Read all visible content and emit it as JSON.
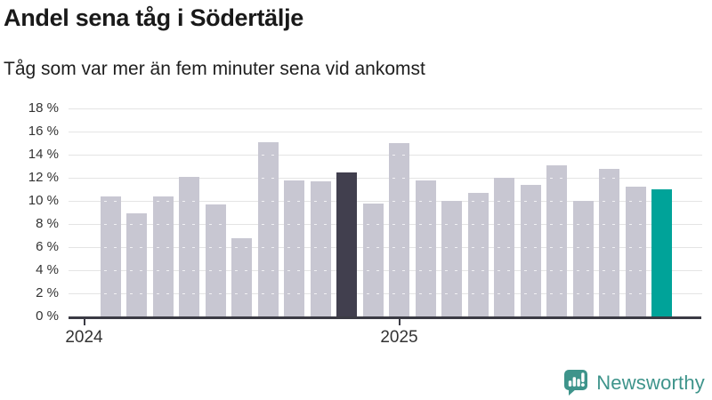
{
  "title": "Andel sena tåg i Södertälje",
  "subtitle": "Tåg som var mer än fem minuter sena vid ankomst",
  "brand": {
    "name": "Newsworthy"
  },
  "chart_data": {
    "type": "bar",
    "title": "Andel sena tåg i Södertälje",
    "subtitle": "Tåg som var mer än fem minuter sena vid ankomst",
    "unit": "%",
    "x": [
      "2024-02",
      "2024-03",
      "2024-04",
      "2024-05",
      "2024-06",
      "2024-07",
      "2024-08",
      "2024-09",
      "2024-10",
      "2024-11",
      "2024-12",
      "2025-01",
      "2025-02",
      "2025-03",
      "2025-04",
      "2025-05",
      "2025-06",
      "2025-07",
      "2025-08",
      "2025-09",
      "2025-10",
      "2025-11"
    ],
    "values": [
      10.4,
      8.9,
      10.4,
      12.1,
      9.7,
      6.8,
      15.1,
      11.8,
      11.7,
      12.5,
      9.8,
      15.0,
      11.8,
      10.0,
      10.7,
      12.0,
      11.4,
      13.1,
      10.0,
      12.8,
      11.2,
      11.0
    ],
    "highlighted_month": "2024-11",
    "latest_month": "2025-11",
    "ylim": [
      0,
      18
    ],
    "ytick_step": 2,
    "ytick_labels": [
      "18 %",
      "16 %",
      "14 %",
      "12 %",
      "10 %",
      "8 %",
      "6 %",
      "4 %",
      "2 %",
      "0 %"
    ],
    "xticks": [
      {
        "label": "2024",
        "month": "2024-01"
      },
      {
        "label": "2025",
        "month": "2025-01"
      }
    ],
    "grid": true,
    "legend": "none",
    "colors": {
      "bar_default": "#c8c7d2",
      "bar_highlight": "#413f4e",
      "bar_latest": "#00a399",
      "gridline": "#e4e4e4",
      "axis": "#3b3b44",
      "tick_text": "#333333",
      "brand_teal": "#3e948b"
    }
  }
}
